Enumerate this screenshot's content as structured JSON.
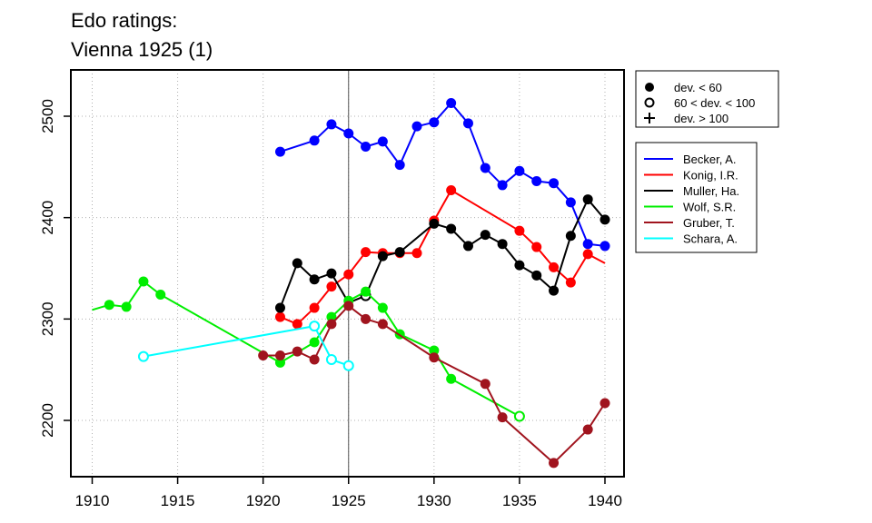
{
  "chart_data": {
    "type": "line",
    "title": "Edo ratings:",
    "subtitle": "Vienna 1925 (1)",
    "xlabel": "",
    "ylabel": "",
    "xlim": [
      1909,
      1941
    ],
    "ylim": [
      2140,
      2545
    ],
    "x_ticks": [
      1910,
      1915,
      1920,
      1925,
      1930,
      1935,
      1940
    ],
    "y_ticks": [
      2200,
      2300,
      2400,
      2500
    ],
    "grid": true,
    "vertical_marker": 1925,
    "legend_position": "right",
    "deviation_legend": [
      {
        "marker": "filled-circle",
        "label": "dev. < 60"
      },
      {
        "marker": "open-circle",
        "label": "60 < dev. < 100"
      },
      {
        "marker": "plus",
        "label": "dev. > 100"
      }
    ],
    "series": [
      {
        "name": "Becker, A.",
        "color": "#0000ff",
        "points": [
          [
            1921,
            2465,
            "f"
          ],
          [
            1923,
            2476,
            "f"
          ],
          [
            1924,
            2492,
            "f"
          ],
          [
            1925,
            2483,
            "f"
          ],
          [
            1926,
            2470,
            "f"
          ],
          [
            1927,
            2475,
            "f"
          ],
          [
            1928,
            2452,
            "f"
          ],
          [
            1929,
            2490,
            "f"
          ],
          [
            1930,
            2494,
            "f"
          ],
          [
            1931,
            2513,
            "f"
          ],
          [
            1932,
            2493,
            "f"
          ],
          [
            1933,
            2449,
            "f"
          ],
          [
            1934,
            2432,
            "f"
          ],
          [
            1935,
            2446,
            "f"
          ],
          [
            1936,
            2436,
            "f"
          ],
          [
            1937,
            2434,
            "f"
          ],
          [
            1938,
            2415,
            "f"
          ],
          [
            1939,
            2374,
            "f"
          ],
          [
            1940,
            2372,
            "f"
          ]
        ]
      },
      {
        "name": "Konig, I.R.",
        "color": "#ff0000",
        "points": [
          [
            1921,
            2302,
            "f"
          ],
          [
            1922,
            2295,
            "f"
          ],
          [
            1923,
            2311,
            "f"
          ],
          [
            1924,
            2332,
            "f"
          ],
          [
            1925,
            2344,
            "f"
          ],
          [
            1926,
            2366,
            "f"
          ],
          [
            1927,
            2365,
            "f"
          ],
          [
            1928,
            2365,
            "f"
          ],
          [
            1929,
            2365,
            "f"
          ],
          [
            1930,
            2397,
            "f"
          ],
          [
            1931,
            2427,
            "f"
          ],
          [
            1935,
            2387,
            "f"
          ],
          [
            1936,
            2371,
            "f"
          ],
          [
            1937,
            2351,
            "f"
          ],
          [
            1938,
            2336,
            "f"
          ],
          [
            1939,
            2364,
            "f"
          ],
          [
            1940,
            2355,
            "n"
          ]
        ]
      },
      {
        "name": "Muller, Ha.",
        "color": "#000000",
        "points": [
          [
            1921,
            2311,
            "f"
          ],
          [
            1922,
            2355,
            "f"
          ],
          [
            1923,
            2339,
            "f"
          ],
          [
            1924,
            2345,
            "f"
          ],
          [
            1925,
            2316,
            "n"
          ],
          [
            1926,
            2323,
            "o"
          ],
          [
            1927,
            2362,
            "f"
          ],
          [
            1928,
            2366,
            "f"
          ],
          [
            1930,
            2394,
            "f"
          ],
          [
            1931,
            2389,
            "f"
          ],
          [
            1932,
            2372,
            "f"
          ],
          [
            1933,
            2383,
            "f"
          ],
          [
            1934,
            2374,
            "f"
          ],
          [
            1935,
            2353,
            "f"
          ],
          [
            1936,
            2343,
            "f"
          ],
          [
            1937,
            2328,
            "f"
          ],
          [
            1938,
            2382,
            "f"
          ],
          [
            1939,
            2418,
            "f"
          ],
          [
            1940,
            2398,
            "f"
          ]
        ]
      },
      {
        "name": "Wolf, S.R.",
        "color": "#00ee00",
        "points": [
          [
            1910,
            2309,
            "n"
          ],
          [
            1911,
            2314,
            "f"
          ],
          [
            1912,
            2312,
            "f"
          ],
          [
            1913,
            2337,
            "f"
          ],
          [
            1914,
            2324,
            "f"
          ],
          [
            1921,
            2257,
            "f"
          ],
          [
            1923,
            2277,
            "f"
          ],
          [
            1924,
            2302,
            "f"
          ],
          [
            1925,
            2318,
            "f"
          ],
          [
            1926,
            2327,
            "f"
          ],
          [
            1927,
            2311,
            "f"
          ],
          [
            1928,
            2285,
            "f"
          ],
          [
            1930,
            2269,
            "f"
          ],
          [
            1931,
            2241,
            "f"
          ],
          [
            1935,
            2204,
            "o"
          ]
        ]
      },
      {
        "name": "Gruber, T.",
        "color": "#a0141e",
        "points": [
          [
            1920,
            2264,
            "f"
          ],
          [
            1921,
            2264,
            "f"
          ],
          [
            1922,
            2268,
            "f"
          ],
          [
            1923,
            2260,
            "f"
          ],
          [
            1924,
            2295,
            "f"
          ],
          [
            1925,
            2313,
            "f"
          ],
          [
            1926,
            2300,
            "f"
          ],
          [
            1927,
            2295,
            "f"
          ],
          [
            1930,
            2262,
            "f"
          ],
          [
            1933,
            2236,
            "f"
          ],
          [
            1934,
            2203,
            "f"
          ],
          [
            1937,
            2158,
            "f"
          ],
          [
            1939,
            2191,
            "f"
          ],
          [
            1940,
            2217,
            "f"
          ]
        ]
      },
      {
        "name": "Schara, A.",
        "color": "#00ffff",
        "points": [
          [
            1913,
            2263,
            "o"
          ],
          [
            1923,
            2293,
            "o"
          ],
          [
            1924,
            2260,
            "o"
          ],
          [
            1925,
            2254,
            "o"
          ]
        ]
      }
    ]
  }
}
